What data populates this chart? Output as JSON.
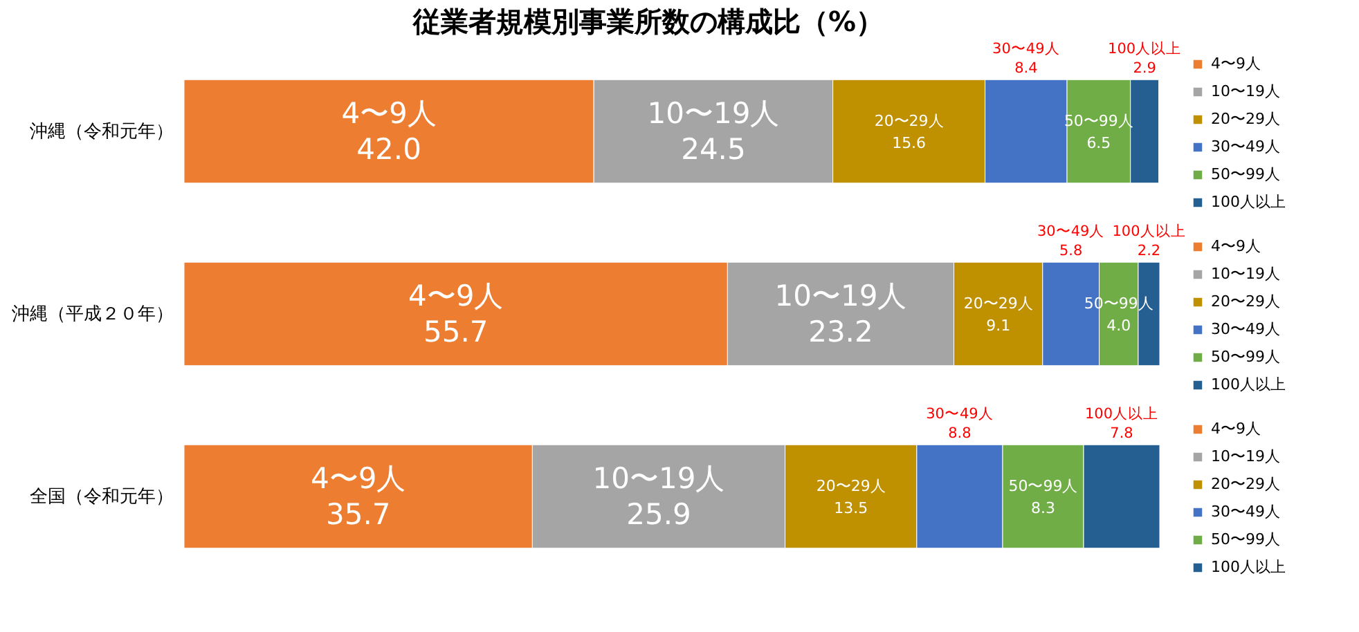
{
  "chart_data": [
    {
      "type": "bar",
      "title": "従業者規模別事業所数の構成比（%）",
      "orientation": "horizontal",
      "stacked": true,
      "legend": "right",
      "tick_labels": "y",
      "xlim": [
        0,
        100
      ],
      "categories": [
        "沖縄（令和元年）"
      ],
      "series": [
        {
          "name": "4〜9人",
          "color": "#ed7d31",
          "values": [
            42.0
          ],
          "value_labels": [
            "42.0"
          ]
        },
        {
          "name": "10〜19人",
          "color": "#a5a5a5",
          "values": [
            24.5
          ],
          "value_labels": [
            "24.5"
          ]
        },
        {
          "name": "20〜29人",
          "color": "#bf9000",
          "values": [
            15.6
          ],
          "value_labels": [
            "15.6"
          ]
        },
        {
          "name": "30〜49人",
          "color": "#4472c4",
          "values": [
            8.4
          ],
          "value_labels": [
            "8.4"
          ]
        },
        {
          "name": "50〜99人",
          "color": "#70ad47",
          "values": [
            6.5
          ],
          "value_labels": [
            "6.5"
          ]
        },
        {
          "name": "100人以上",
          "color": "#255e91",
          "values": [
            2.9
          ],
          "value_labels": [
            "2.9"
          ]
        }
      ]
    },
    {
      "type": "bar",
      "orientation": "horizontal",
      "stacked": true,
      "legend": "right",
      "tick_labels": "y",
      "xlim": [
        0,
        100
      ],
      "categories": [
        "沖縄（平成２０年）"
      ],
      "series": [
        {
          "name": "4〜9人",
          "color": "#ed7d31",
          "values": [
            55.7
          ],
          "value_labels": [
            "55.7"
          ]
        },
        {
          "name": "10〜19人",
          "color": "#a5a5a5",
          "values": [
            23.2
          ],
          "value_labels": [
            "23.2"
          ]
        },
        {
          "name": "20〜29人",
          "color": "#bf9000",
          "values": [
            9.1
          ],
          "value_labels": [
            "9.1"
          ]
        },
        {
          "name": "30〜49人",
          "color": "#4472c4",
          "values": [
            5.8
          ],
          "value_labels": [
            "5.8"
          ]
        },
        {
          "name": "50〜99人",
          "color": "#70ad47",
          "values": [
            4.0
          ],
          "value_labels": [
            "4.0"
          ]
        },
        {
          "name": "100人以上",
          "color": "#255e91",
          "values": [
            2.2
          ],
          "value_labels": [
            "2.2"
          ]
        }
      ]
    },
    {
      "type": "bar",
      "orientation": "horizontal",
      "stacked": true,
      "legend": "right",
      "tick_labels": "y",
      "xlim": [
        0,
        100
      ],
      "categories": [
        "全国（令和元年）"
      ],
      "series": [
        {
          "name": "4〜9人",
          "color": "#ed7d31",
          "values": [
            35.7
          ],
          "value_labels": [
            "35.7"
          ]
        },
        {
          "name": "10〜19人",
          "color": "#a5a5a5",
          "values": [
            25.9
          ],
          "value_labels": [
            "25.9"
          ]
        },
        {
          "name": "20〜29人",
          "color": "#bf9000",
          "values": [
            13.5
          ],
          "value_labels": [
            "13.5"
          ]
        },
        {
          "name": "30〜49人",
          "color": "#4472c4",
          "values": [
            8.8
          ],
          "value_labels": [
            "8.8"
          ]
        },
        {
          "name": "50〜99人",
          "color": "#70ad47",
          "values": [
            8.3
          ],
          "value_labels": [
            "8.3"
          ]
        },
        {
          "name": "100人以上",
          "color": "#255e91",
          "values": [
            7.8
          ],
          "value_labels": [
            "7.8"
          ]
        }
      ]
    }
  ]
}
